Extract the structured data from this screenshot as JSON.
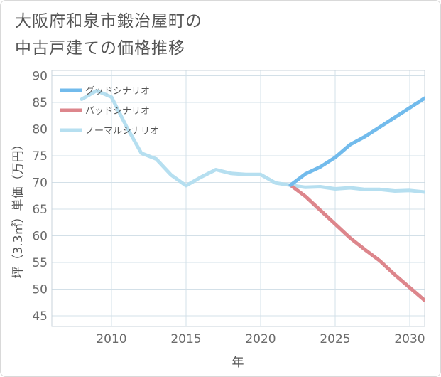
{
  "title_lines": [
    "大阪府和泉市鍛治屋町の",
    "中古戸建ての価格推移"
  ],
  "chart_data": {
    "type": "line",
    "title": "大阪府和泉市鍛治屋町の中古戸建ての価格推移",
    "xlabel": "年",
    "ylabel": "坪（3.3㎡）単価（万円）",
    "xlim": [
      2006,
      2031
    ],
    "ylim": [
      43,
      91
    ],
    "x_ticks": [
      2010,
      2015,
      2020,
      2025,
      2030
    ],
    "y_ticks": [
      45,
      50,
      55,
      60,
      65,
      70,
      75,
      80,
      85,
      90
    ],
    "grid": true,
    "legend_position": "top-left",
    "series": [
      {
        "name": "グッドシナリオ",
        "color": "#72bbec",
        "x": [
          2022,
          2023,
          2024,
          2025,
          2026,
          2027,
          2028,
          2029,
          2030,
          2031
        ],
        "values": [
          69.5,
          71.6,
          72.9,
          74.7,
          77.1,
          78.6,
          80.4,
          82.2,
          84.0,
          85.8
        ]
      },
      {
        "name": "バッドシナリオ",
        "color": "#dd868c",
        "x": [
          2022,
          2023,
          2024,
          2025,
          2026,
          2027,
          2028,
          2029,
          2030,
          2031
        ],
        "values": [
          69.5,
          67.4,
          64.8,
          62.2,
          59.6,
          57.4,
          55.3,
          52.7,
          50.3,
          47.9
        ]
      },
      {
        "name": "ノーマルシナリオ",
        "color": "#b6dff0",
        "x": [
          2008,
          2009,
          2010,
          2011,
          2012,
          2013,
          2014,
          2015,
          2016,
          2017,
          2018,
          2019,
          2020,
          2021,
          2022,
          2023,
          2024,
          2025,
          2026,
          2027,
          2028,
          2029,
          2030,
          2031
        ],
        "values": [
          85.6,
          87.2,
          86.0,
          80.5,
          75.5,
          74.4,
          71.4,
          69.4,
          71.0,
          72.4,
          71.7,
          71.5,
          71.5,
          69.9,
          69.5,
          69.1,
          69.2,
          68.8,
          69.0,
          68.7,
          68.7,
          68.4,
          68.5,
          68.2
        ]
      }
    ]
  }
}
